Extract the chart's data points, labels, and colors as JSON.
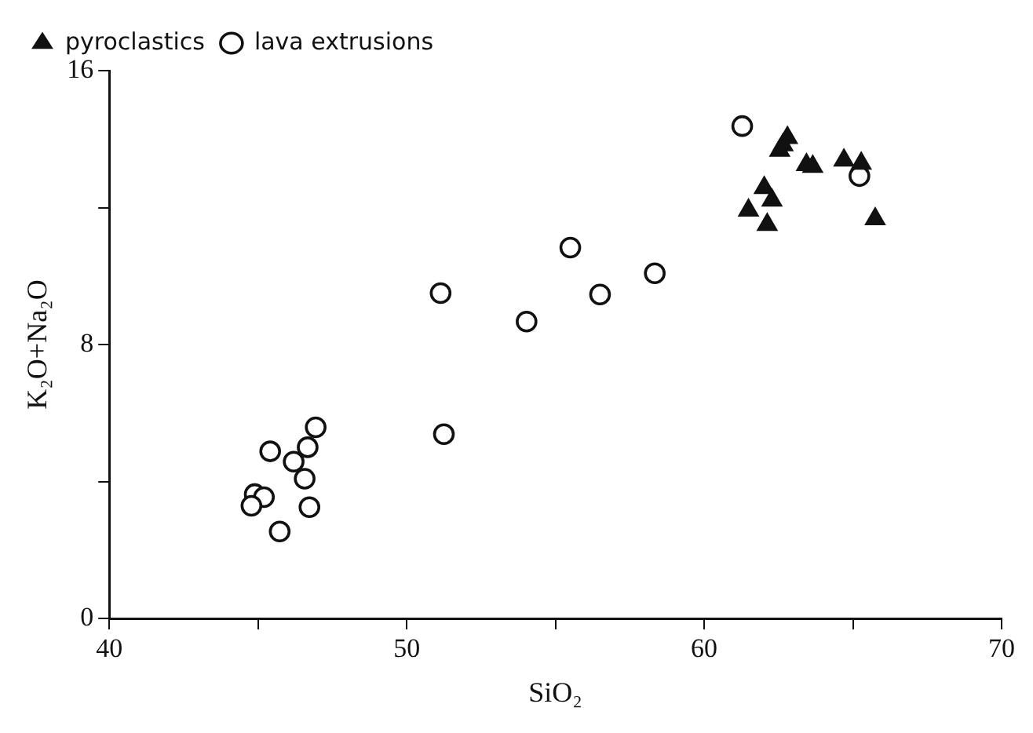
{
  "chart_data": {
    "type": "scatter",
    "xlabel": "SiO₂",
    "ylabel": "K₂O+Na₂O",
    "xlim": [
      40,
      70
    ],
    "xticks": [
      40,
      {
        "value": 45,
        "label": null
      },
      50,
      {
        "value": 55,
        "label": null
      },
      60,
      {
        "value": 65,
        "label": null
      },
      70
    ],
    "ylim": [
      0,
      16
    ],
    "yticks": [
      0,
      {
        "value": 4,
        "label": null
      },
      8,
      {
        "value": 12,
        "label": null
      },
      16
    ],
    "grid": false,
    "legend": "top left",
    "series": [
      {
        "name": "pyroclastics",
        "color": "#111111",
        "marker": "triangle",
        "x": [
          62.8,
          62.65,
          62.54,
          63.44,
          63.65,
          64.7,
          65.28,
          62.02,
          62.28,
          61.49,
          62.12,
          65.75
        ],
        "values": [
          14.04,
          13.83,
          13.67,
          13.25,
          13.2,
          13.38,
          13.29,
          12.58,
          12.21,
          11.92,
          11.5,
          11.67
        ]
      },
      {
        "name": "lava extrusions",
        "color": "#111111",
        "marker": "circle",
        "x": [
          46.94,
          45.41,
          46.67,
          46.2,
          46.57,
          44.89,
          45.2,
          44.78,
          46.73,
          45.73,
          51.25,
          55.5,
          58.34,
          51.14,
          56.5,
          54.03,
          61.28,
          65.22
        ],
        "values": [
          5.58,
          4.88,
          5.0,
          4.58,
          4.08,
          3.63,
          3.54,
          3.29,
          3.25,
          2.54,
          5.38,
          10.83,
          10.08,
          9.5,
          9.46,
          8.67,
          14.38,
          12.92
        ]
      }
    ]
  }
}
